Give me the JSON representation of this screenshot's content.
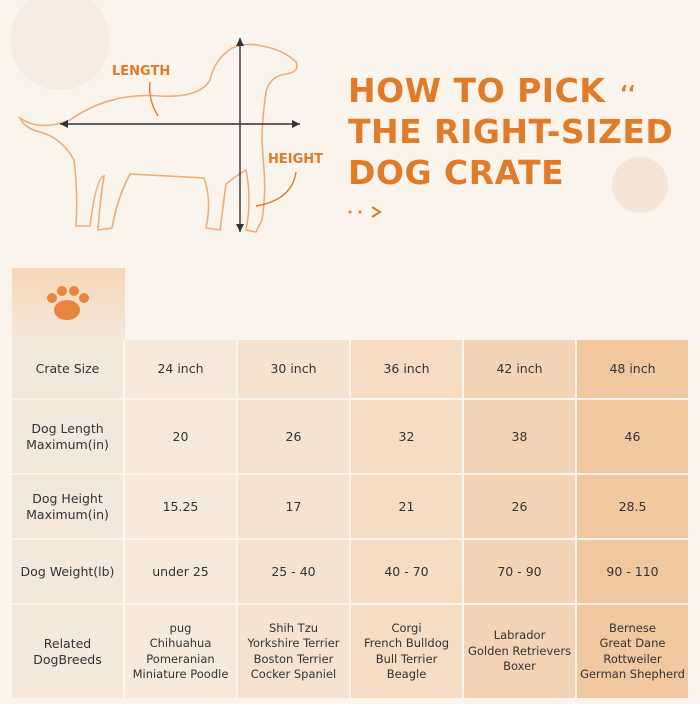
{
  "header": {
    "length_label": "LENGTH",
    "height_label": "HEIGHT",
    "title_lines": [
      "HOW TO PICK",
      "THE RIGHT-SIZED",
      "DOG CRATE"
    ]
  },
  "table": {
    "rows": [
      {
        "label": [
          "Crate Size"
        ],
        "cells": [
          "24 inch",
          "30 inch",
          "36 inch",
          "42 inch",
          "48 inch"
        ]
      },
      {
        "label": [
          "Dog Length",
          "Maximum(in)"
        ],
        "cells": [
          20,
          26,
          32,
          38,
          46
        ]
      },
      {
        "label": [
          "Dog Height",
          "Maximum(in)"
        ],
        "cells": [
          15.25,
          17,
          21,
          26,
          28.5
        ]
      },
      {
        "label": [
          "Dog Weight(lb)"
        ],
        "cells": [
          "under 25",
          "25 - 40",
          "40 - 70",
          "70 - 90",
          "90 - 110"
        ]
      },
      {
        "label": [
          "Related",
          "DogBreeds"
        ],
        "cells": [
          [
            "pug",
            "Chihuahua",
            "Pomeranian",
            "Miniature Poodle"
          ],
          [
            "Shih Tzu",
            "Yorkshire Terrier",
            "Boston Terrier",
            "Cocker Spaniel"
          ],
          [
            "Corgi",
            "French Bulldog",
            "Bull Terrier",
            "Beagle"
          ],
          [
            "Labrador",
            "Golden Retrievers",
            "Boxer"
          ],
          [
            "Bernese",
            "Great Dane",
            "Rottweiler",
            "German Shepherd"
          ]
        ]
      }
    ]
  }
}
